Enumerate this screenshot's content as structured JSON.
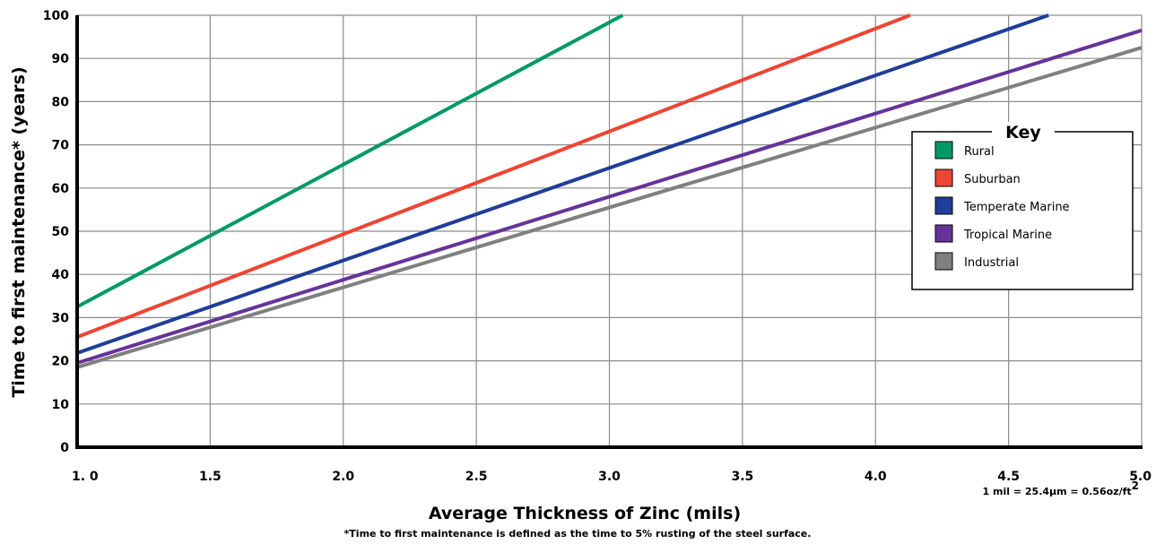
{
  "chart_data": {
    "type": "line",
    "xlabel": "Average Thickness of Zinc (mils)",
    "ylabel": "Time to first maintenance* (years)",
    "footnote": "*Time to first maintenance is defined as the time to 5% rusting of the steel surface.",
    "unit_note": "1 mil = 25.4µm = 0.56oz/ft",
    "unit_note_sup": "2",
    "xlim": [
      1.0,
      5.0
    ],
    "ylim": [
      0,
      100
    ],
    "x_ticks": [
      "1. 0",
      "1.5",
      "2.0",
      "2.5",
      "3.0",
      "3.5",
      "4.0",
      "4.5",
      "5.0"
    ],
    "y_ticks": [
      "0",
      "10",
      "20",
      "30",
      "40",
      "50",
      "60",
      "70",
      "80",
      "90",
      "100"
    ],
    "grid": true,
    "legend_title": "Key",
    "legend_position": "right",
    "series": [
      {
        "name": "Rural",
        "color": "#009966",
        "x": [
          1.0,
          3.05
        ],
        "y": [
          32.5,
          100
        ]
      },
      {
        "name": "Suburban",
        "color": "#ee4433",
        "x": [
          1.0,
          4.13
        ],
        "y": [
          25.5,
          100
        ]
      },
      {
        "name": "Temperate Marine",
        "color": "#1f3d99",
        "x": [
          1.0,
          4.65
        ],
        "y": [
          21.8,
          100
        ]
      },
      {
        "name": "Tropical Marine",
        "color": "#663399",
        "x": [
          1.0,
          5.0
        ],
        "y": [
          19.5,
          96.5
        ]
      },
      {
        "name": "Industrial",
        "color": "#808080",
        "x": [
          1.0,
          5.0
        ],
        "y": [
          18.5,
          92.5
        ]
      }
    ]
  }
}
